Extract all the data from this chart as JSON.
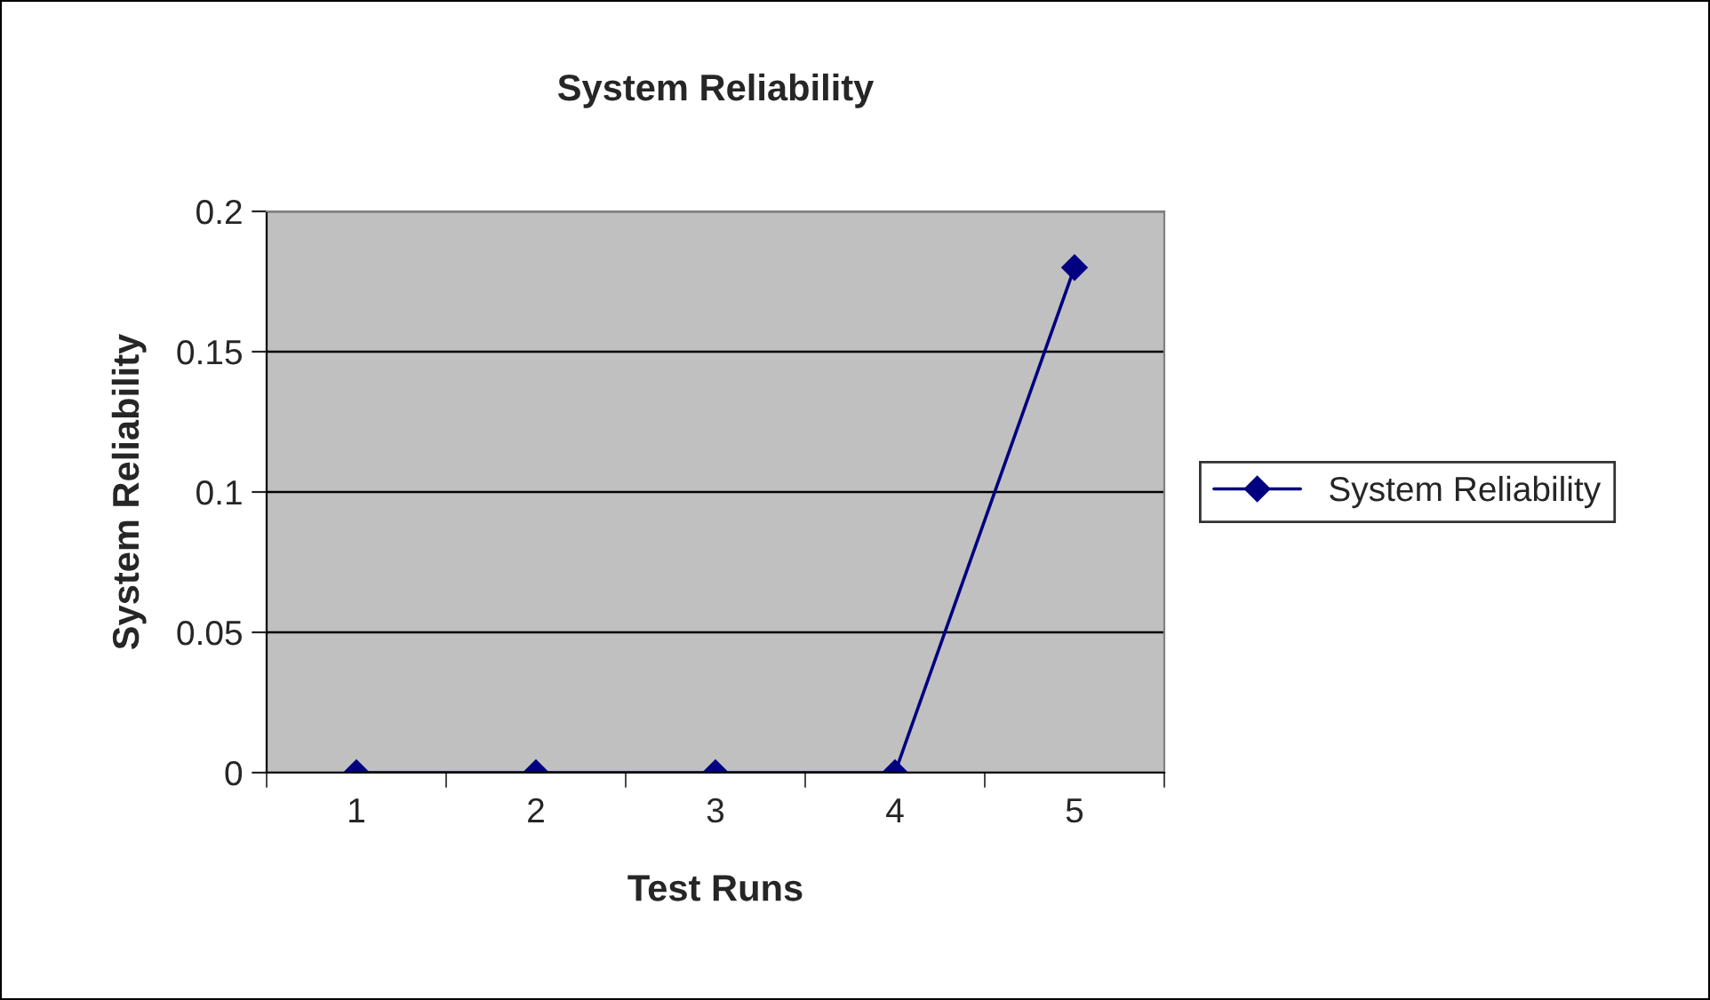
{
  "chart_data": {
    "type": "line",
    "title": "System Reliability",
    "xlabel": "Test Runs",
    "ylabel": "System Reliability",
    "categories": [
      "1",
      "2",
      "3",
      "4",
      "5"
    ],
    "series": [
      {
        "name": "System Reliability",
        "color": "#000080",
        "values": [
          0,
          0,
          0,
          0,
          0.18
        ]
      }
    ],
    "ylim": [
      0,
      0.2
    ],
    "yticks": [
      0,
      0.05,
      0.1,
      0.15,
      0.2
    ],
    "grid": "y",
    "legend": "right",
    "marker": "diamond",
    "line_style": "solid"
  }
}
